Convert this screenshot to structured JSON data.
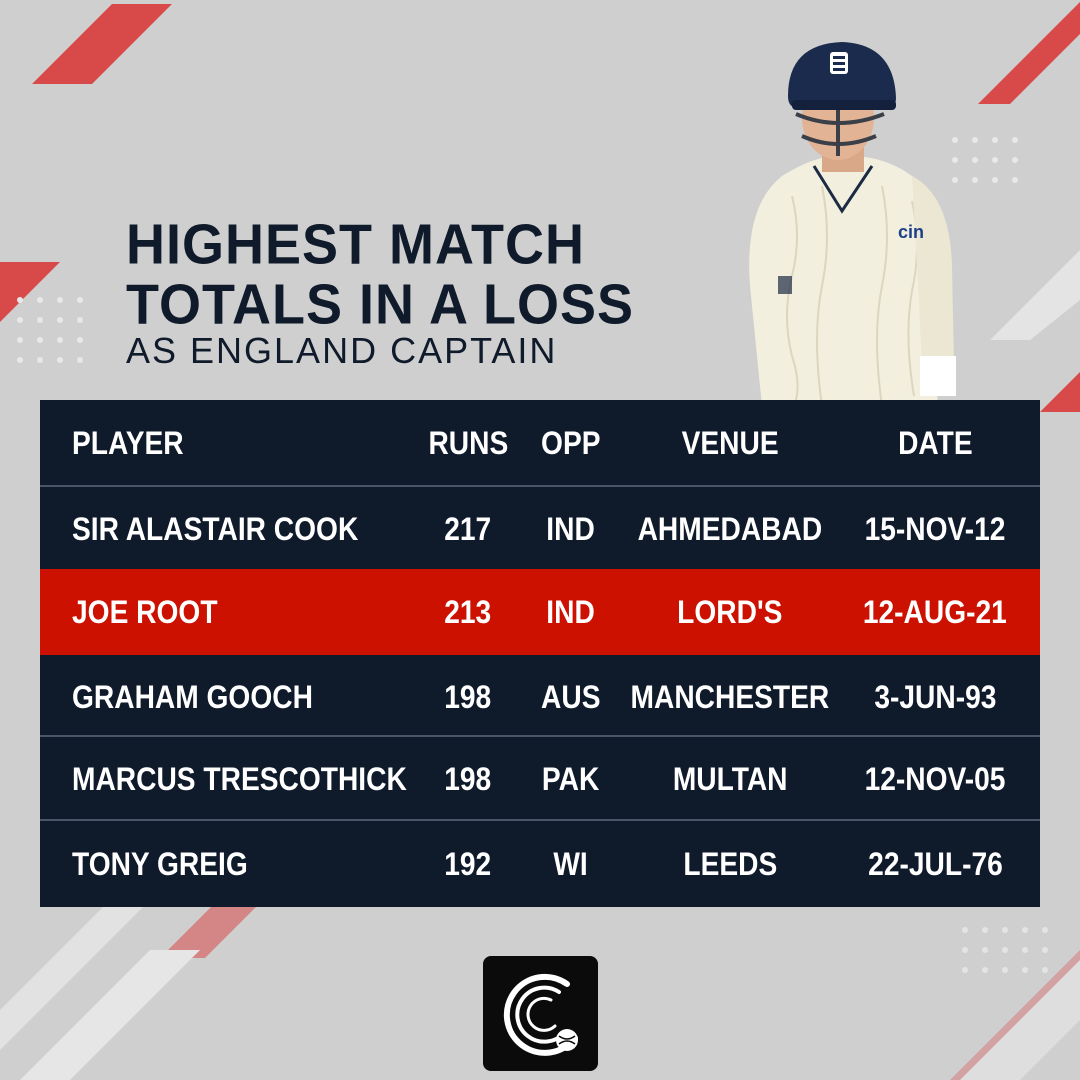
{
  "title_lines": [
    "HIGHEST MATCH",
    "TOTALS IN A LOSS"
  ],
  "subtitle": "AS ENGLAND CAPTAIN",
  "colors": {
    "background": "#cfcfcf",
    "table_background": "#0f1a2b",
    "highlight_row": "#cc1100",
    "accent_stripes": "#d84a4a",
    "text_light": "#ffffff",
    "title_text": "#0f1a2b"
  },
  "table": {
    "headers": {
      "player": "PLAYER",
      "runs": "RUNS",
      "opp": "OPP",
      "venue": "VENUE",
      "date": "DATE"
    },
    "rows": [
      {
        "player": "SIR ALASTAIR COOK",
        "runs": "217",
        "opp": "IND",
        "venue": "AHMEDABAD",
        "date": "15-NOV-12",
        "highlight": false
      },
      {
        "player": "JOE ROOT",
        "runs": "213",
        "opp": "IND",
        "venue": "LORD'S",
        "date": "12-AUG-21",
        "highlight": true
      },
      {
        "player": "GRAHAM GOOCH",
        "runs": "198",
        "opp": "AUS",
        "venue": "MANCHESTER",
        "date": "3-JUN-93",
        "highlight": false
      },
      {
        "player": "MARCUS TRESCOTHICK",
        "runs": "198",
        "opp": "PAK",
        "venue": "MULTAN",
        "date": "12-NOV-05",
        "highlight": false
      },
      {
        "player": "TONY GREIG",
        "runs": "192",
        "opp": "WI",
        "venue": "LEEDS",
        "date": "22-JUL-76",
        "highlight": false
      }
    ]
  },
  "player_photo": {
    "depicts": "cricketer-in-helmet",
    "shirt_logo_text": "cin"
  },
  "logo_icon": "cricket-ball-logo-icon"
}
